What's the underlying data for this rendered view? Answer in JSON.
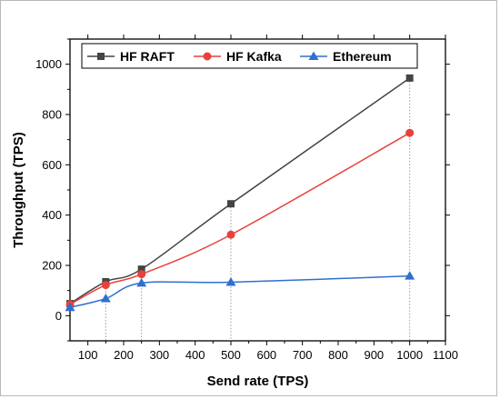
{
  "chart_data": {
    "type": "line",
    "title": "",
    "xlabel": "Send rate (TPS)",
    "ylabel": "Throughput (TPS)",
    "xlim": [
      50,
      1100
    ],
    "ylim": [
      -100,
      1100
    ],
    "x_ticks": [
      100,
      200,
      300,
      400,
      500,
      600,
      700,
      800,
      900,
      1000,
      1100
    ],
    "y_ticks": [
      0,
      200,
      400,
      600,
      800,
      1000
    ],
    "x_tick_labels": [
      "100",
      "200",
      "300",
      "400",
      "500",
      "600",
      "700",
      "800",
      "900",
      "1000",
      "1100"
    ],
    "y_tick_labels": [
      "0",
      "200",
      "400",
      "600",
      "800",
      "1000"
    ],
    "x": [
      50,
      150,
      250,
      500,
      1000
    ],
    "series": [
      {
        "name": "HF RAFT",
        "values": [
          48,
          135,
          185,
          445,
          945
        ],
        "color": "#444444",
        "marker": "square"
      },
      {
        "name": "HF Kafka",
        "values": [
          45,
          122,
          165,
          322,
          727
        ],
        "color": "#e8413c",
        "marker": "circle"
      },
      {
        "name": "Ethereum",
        "values": [
          33,
          68,
          130,
          133,
          158
        ],
        "color": "#2f6fd0",
        "marker": "triangle"
      }
    ],
    "dropline_x": [
      150,
      250,
      500,
      1000
    ],
    "legend_position": "top",
    "grid": false
  }
}
